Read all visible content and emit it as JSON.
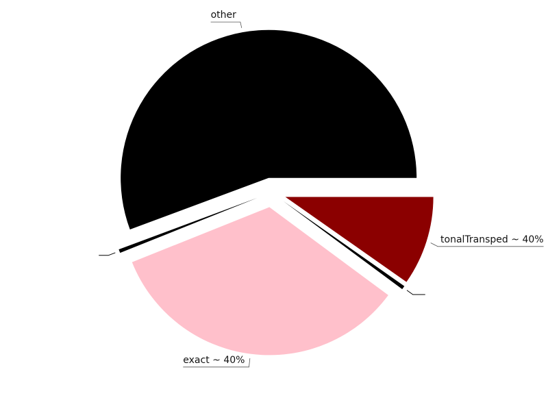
{
  "chart_data": {
    "type": "pie",
    "title": "",
    "slices": [
      {
        "label": "other",
        "value": 56,
        "color": "#000000"
      },
      {
        "label": "",
        "value": 0.4,
        "color": "#000000"
      },
      {
        "label": "exact ~ 40%",
        "value": 34,
        "color": "#ffc0cb"
      },
      {
        "label": "",
        "value": 0.4,
        "color": "#000000"
      },
      {
        "label": "tonalTransped ~ 40%",
        "value": 9.8,
        "color": "#8b0000"
      }
    ],
    "legend": "none"
  }
}
